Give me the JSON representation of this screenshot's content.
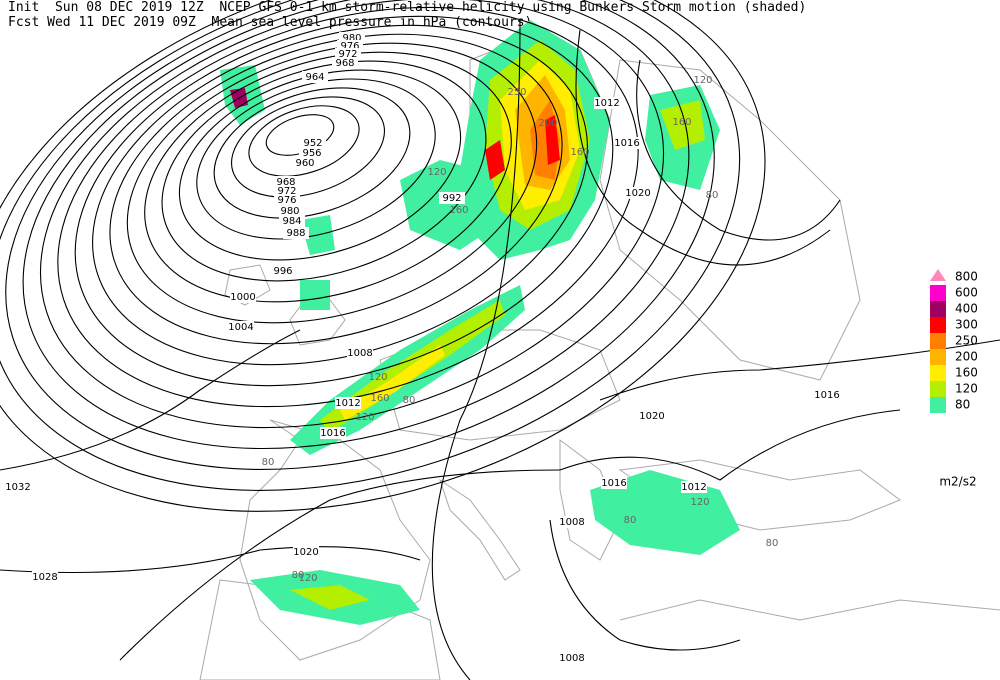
{
  "header": {
    "line1": "Init  Sun 08 DEC 2019 12Z  NCEP GFS 0-1 km storm-relative helicity using Bunkers Storm motion (shaded)",
    "line2": "Fcst Wed 11 DEC 2019 09Z  Mean sea level pressure in hPa (contours)"
  },
  "legend": {
    "items": [
      {
        "label": "800",
        "color": "#ff88bb"
      },
      {
        "label": "600",
        "color": "#ff00cc"
      },
      {
        "label": "400",
        "color": "#a00060"
      },
      {
        "label": "300",
        "color": "#ff0000"
      },
      {
        "label": "250",
        "color": "#ff7f00"
      },
      {
        "label": "200",
        "color": "#ffb400"
      },
      {
        "label": "160",
        "color": "#ffee00"
      },
      {
        "label": "120",
        "color": "#b4ee00"
      },
      {
        "label": "80",
        "color": "#40f0a0"
      }
    ],
    "unit": "m2/s2"
  },
  "contour_labels": [
    "980",
    "976",
    "972",
    "968",
    "964",
    "952",
    "956",
    "960",
    "968",
    "972",
    "976",
    "980",
    "984",
    "988",
    "992",
    "996",
    "1000",
    "1004",
    "1008",
    "1012",
    "1016",
    "1020",
    "1020",
    "1016",
    "1012",
    "1016",
    "1012",
    "1016",
    "1008",
    "1020",
    "1028",
    "1032",
    "1008"
  ],
  "shading_labels": [
    "120",
    "160",
    "80",
    "120",
    "160",
    "250",
    "200",
    "160",
    "120",
    "160",
    "80",
    "120",
    "80",
    "120",
    "80",
    "120",
    "80",
    "80"
  ]
}
